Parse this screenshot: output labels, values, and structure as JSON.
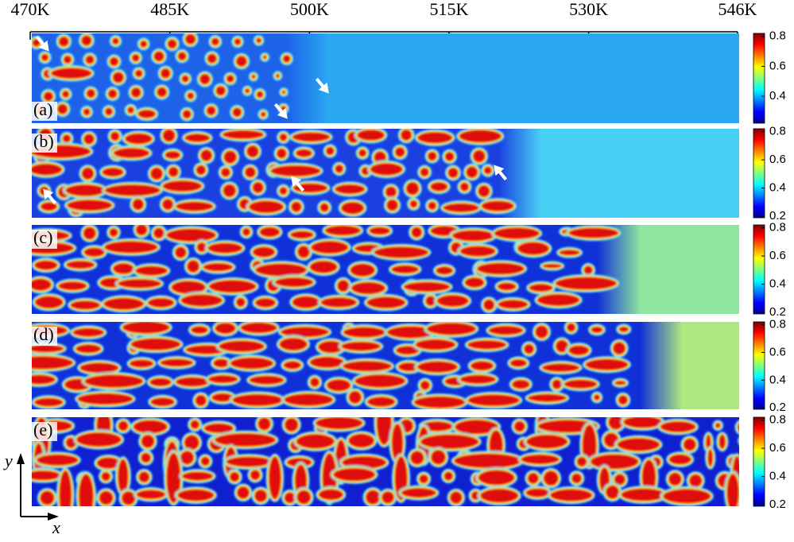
{
  "top_axis": {
    "lim": [
      470,
      546
    ],
    "ticks": [
      {
        "value": 470,
        "label": "470K"
      },
      {
        "value": 485,
        "label": "485K"
      },
      {
        "value": 500,
        "label": "500K"
      },
      {
        "value": 515,
        "label": "515K"
      },
      {
        "value": 530,
        "label": "530K"
      },
      {
        "value": 546,
        "label": "546K"
      }
    ]
  },
  "panels": [
    {
      "label": "(a)",
      "colorbar": {
        "lim": [
          0.22,
          0.82
        ],
        "ticks": [
          0.4,
          0.6,
          0.8
        ]
      }
    },
    {
      "label": "(b)",
      "colorbar": {
        "lim": [
          0.19,
          0.82
        ],
        "ticks": [
          0.2,
          0.4,
          0.6,
          0.8
        ]
      }
    },
    {
      "label": "(c)",
      "colorbar": {
        "lim": [
          0.19,
          0.82
        ],
        "ticks": [
          0.2,
          0.4,
          0.6,
          0.8
        ]
      }
    },
    {
      "label": "(d)",
      "colorbar": {
        "lim": [
          0.19,
          0.82
        ],
        "ticks": [
          0.2,
          0.4,
          0.6,
          0.8
        ]
      }
    },
    {
      "label": "(e)",
      "colorbar": {
        "lim": [
          0.19,
          0.82
        ],
        "ticks": [
          0.2,
          0.4,
          0.6,
          0.8
        ]
      }
    }
  ],
  "axes": {
    "x_label": "x",
    "y_label": "y"
  }
}
